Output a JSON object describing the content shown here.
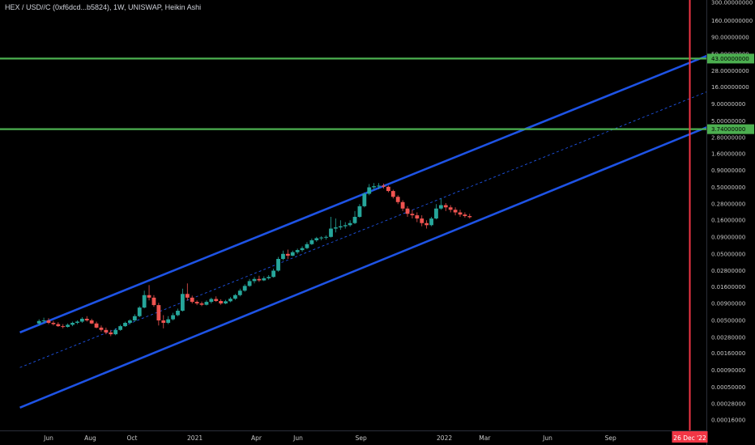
{
  "header": {
    "title": "HEX / USD//C (0xf6dcd...b5824), 1W, UNISWAP, Heikin Ashi"
  },
  "chart_data": {
    "type": "candlestick",
    "scale": "log",
    "y_ticks": [
      "300.00000000",
      "160.00000000",
      "90.00000000",
      "50.00000000",
      "28.00000000",
      "16.00000000",
      "9.00000000",
      "5.00000000",
      "2.80000000",
      "1.60000000",
      "0.90000000",
      "0.50000000",
      "0.28000000",
      "0.16000000",
      "0.09000000",
      "0.05000000",
      "0.02800000",
      "0.01600000",
      "0.00900000",
      "0.00500000",
      "0.00280000",
      "0.00160000",
      "0.00090000",
      "0.00050000",
      "0.00028000",
      "0.00016000"
    ],
    "y_tick_values": [
      300,
      160,
      90,
      50,
      28,
      16,
      9,
      5,
      2.8,
      1.6,
      0.9,
      0.5,
      0.28,
      0.16,
      0.09,
      0.05,
      0.028,
      0.016,
      0.009,
      0.005,
      0.0028,
      0.0016,
      0.0009,
      0.0005,
      0.00028,
      0.00016
    ],
    "x_ticks": [
      "Jun",
      "Aug",
      "Oct",
      "2021",
      "Apr",
      "Jun",
      "Sep",
      "2022",
      "Mar",
      "Jun",
      "Sep"
    ],
    "x_tick_dates": [
      "2020-06-01",
      "2020-08-01",
      "2020-10-01",
      "2021-01-01",
      "2021-04-01",
      "2021-06-01",
      "2021-09-01",
      "2022-01-01",
      "2022-03-01",
      "2022-06-01",
      "2022-09-01"
    ],
    "horizontal_levels": [
      {
        "label": "43.00000000",
        "value": 43,
        "color": "#4caf50"
      },
      {
        "label": "3.74000000",
        "value": 3.74,
        "color": "#4caf50"
      }
    ],
    "vertical_marker": {
      "label": "26 Dec '22",
      "date": "2022-12-26",
      "color": "#f23645"
    },
    "channel": {
      "color": "#1e53e5",
      "upper": [
        {
          "date": "2020-04-20",
          "value": 0.0033
        },
        {
          "date": "2023-01-30",
          "value": 52
        }
      ],
      "lower": [
        {
          "date": "2020-04-20",
          "value": 0.000245
        },
        {
          "date": "2023-01-30",
          "value": 4.4
        }
      ],
      "mid": [
        {
          "date": "2020-04-20",
          "value": 0.00098
        },
        {
          "date": "2023-01-30",
          "value": 15
        }
      ]
    },
    "candles": [
      {
        "d": "2020-05-18",
        "o": 0.0045,
        "h": 0.0052,
        "l": 0.0042,
        "c": 0.0049
      },
      {
        "d": "2020-05-25",
        "o": 0.0049,
        "h": 0.0055,
        "l": 0.0045,
        "c": 0.005
      },
      {
        "d": "2020-06-01",
        "o": 0.005,
        "h": 0.0054,
        "l": 0.0044,
        "c": 0.0046
      },
      {
        "d": "2020-06-08",
        "o": 0.0046,
        "h": 0.0049,
        "l": 0.0042,
        "c": 0.0044
      },
      {
        "d": "2020-06-15",
        "o": 0.0044,
        "h": 0.0047,
        "l": 0.004,
        "c": 0.0041
      },
      {
        "d": "2020-06-22",
        "o": 0.0041,
        "h": 0.0044,
        "l": 0.0038,
        "c": 0.004
      },
      {
        "d": "2020-06-29",
        "o": 0.004,
        "h": 0.0045,
        "l": 0.0039,
        "c": 0.0043
      },
      {
        "d": "2020-07-06",
        "o": 0.0043,
        "h": 0.0048,
        "l": 0.0041,
        "c": 0.0046
      },
      {
        "d": "2020-07-13",
        "o": 0.0046,
        "h": 0.005,
        "l": 0.0044,
        "c": 0.0048
      },
      {
        "d": "2020-07-20",
        "o": 0.0048,
        "h": 0.0056,
        "l": 0.0046,
        "c": 0.0053
      },
      {
        "d": "2020-07-27",
        "o": 0.0053,
        "h": 0.0058,
        "l": 0.0048,
        "c": 0.005
      },
      {
        "d": "2020-08-03",
        "o": 0.005,
        "h": 0.0053,
        "l": 0.0044,
        "c": 0.0045
      },
      {
        "d": "2020-08-10",
        "o": 0.0045,
        "h": 0.0048,
        "l": 0.0038,
        "c": 0.0039
      },
      {
        "d": "2020-08-17",
        "o": 0.0039,
        "h": 0.0042,
        "l": 0.0034,
        "c": 0.0036
      },
      {
        "d": "2020-08-24",
        "o": 0.0036,
        "h": 0.0039,
        "l": 0.0031,
        "c": 0.0033
      },
      {
        "d": "2020-08-31",
        "o": 0.0033,
        "h": 0.0036,
        "l": 0.0029,
        "c": 0.0031
      },
      {
        "d": "2020-09-07",
        "o": 0.0031,
        "h": 0.0038,
        "l": 0.003,
        "c": 0.0036
      },
      {
        "d": "2020-09-14",
        "o": 0.0036,
        "h": 0.0043,
        "l": 0.0035,
        "c": 0.0041
      },
      {
        "d": "2020-09-21",
        "o": 0.0041,
        "h": 0.0048,
        "l": 0.004,
        "c": 0.0046
      },
      {
        "d": "2020-09-28",
        "o": 0.0046,
        "h": 0.0052,
        "l": 0.0044,
        "c": 0.005
      },
      {
        "d": "2020-10-05",
        "o": 0.005,
        "h": 0.0062,
        "l": 0.0048,
        "c": 0.0058
      },
      {
        "d": "2020-10-12",
        "o": 0.0058,
        "h": 0.0082,
        "l": 0.0056,
        "c": 0.0078
      },
      {
        "d": "2020-10-19",
        "o": 0.0078,
        "h": 0.014,
        "l": 0.0076,
        "c": 0.012
      },
      {
        "d": "2020-10-26",
        "o": 0.012,
        "h": 0.017,
        "l": 0.01,
        "c": 0.011
      },
      {
        "d": "2020-11-02",
        "o": 0.011,
        "h": 0.012,
        "l": 0.008,
        "c": 0.0085
      },
      {
        "d": "2020-11-09",
        "o": 0.0085,
        "h": 0.0092,
        "l": 0.0042,
        "c": 0.005
      },
      {
        "d": "2020-11-16",
        "o": 0.005,
        "h": 0.006,
        "l": 0.0038,
        "c": 0.0046
      },
      {
        "d": "2020-11-23",
        "o": 0.0046,
        "h": 0.0058,
        "l": 0.0044,
        "c": 0.0052
      },
      {
        "d": "2020-11-30",
        "o": 0.0052,
        "h": 0.0065,
        "l": 0.005,
        "c": 0.006
      },
      {
        "d": "2020-12-07",
        "o": 0.006,
        "h": 0.0075,
        "l": 0.0058,
        "c": 0.007
      },
      {
        "d": "2020-12-14",
        "o": 0.007,
        "h": 0.015,
        "l": 0.0068,
        "c": 0.0125
      },
      {
        "d": "2020-12-21",
        "o": 0.0125,
        "h": 0.018,
        "l": 0.01,
        "c": 0.011
      },
      {
        "d": "2020-12-28",
        "o": 0.011,
        "h": 0.0118,
        "l": 0.009,
        "c": 0.0095
      },
      {
        "d": "2021-01-04",
        "o": 0.0095,
        "h": 0.01,
        "l": 0.0085,
        "c": 0.009
      },
      {
        "d": "2021-01-11",
        "o": 0.009,
        "h": 0.0096,
        "l": 0.0082,
        "c": 0.0086
      },
      {
        "d": "2021-01-18",
        "o": 0.0086,
        "h": 0.01,
        "l": 0.0084,
        "c": 0.0095
      },
      {
        "d": "2021-01-25",
        "o": 0.0095,
        "h": 0.011,
        "l": 0.009,
        "c": 0.0105
      },
      {
        "d": "2021-02-01",
        "o": 0.0105,
        "h": 0.0115,
        "l": 0.0095,
        "c": 0.0098
      },
      {
        "d": "2021-02-08",
        "o": 0.0098,
        "h": 0.0104,
        "l": 0.0086,
        "c": 0.009
      },
      {
        "d": "2021-02-15",
        "o": 0.009,
        "h": 0.0102,
        "l": 0.0088,
        "c": 0.0097
      },
      {
        "d": "2021-02-22",
        "o": 0.0097,
        "h": 0.0112,
        "l": 0.0094,
        "c": 0.0106
      },
      {
        "d": "2021-03-01",
        "o": 0.0106,
        "h": 0.0125,
        "l": 0.0102,
        "c": 0.012
      },
      {
        "d": "2021-03-08",
        "o": 0.012,
        "h": 0.015,
        "l": 0.0115,
        "c": 0.014
      },
      {
        "d": "2021-03-15",
        "o": 0.014,
        "h": 0.0175,
        "l": 0.0135,
        "c": 0.0165
      },
      {
        "d": "2021-03-22",
        "o": 0.0165,
        "h": 0.021,
        "l": 0.016,
        "c": 0.0195
      },
      {
        "d": "2021-03-29",
        "o": 0.0195,
        "h": 0.0225,
        "l": 0.018,
        "c": 0.021
      },
      {
        "d": "2021-04-05",
        "o": 0.021,
        "h": 0.0235,
        "l": 0.019,
        "c": 0.02
      },
      {
        "d": "2021-04-12",
        "o": 0.02,
        "h": 0.023,
        "l": 0.0195,
        "c": 0.0215
      },
      {
        "d": "2021-04-19",
        "o": 0.0215,
        "h": 0.024,
        "l": 0.0205,
        "c": 0.0225
      },
      {
        "d": "2021-04-26",
        "o": 0.0225,
        "h": 0.03,
        "l": 0.022,
        "c": 0.028
      },
      {
        "d": "2021-05-03",
        "o": 0.028,
        "h": 0.045,
        "l": 0.027,
        "c": 0.042
      },
      {
        "d": "2021-05-10",
        "o": 0.042,
        "h": 0.056,
        "l": 0.04,
        "c": 0.05
      },
      {
        "d": "2021-05-17",
        "o": 0.05,
        "h": 0.058,
        "l": 0.042,
        "c": 0.047
      },
      {
        "d": "2021-05-24",
        "o": 0.047,
        "h": 0.056,
        "l": 0.046,
        "c": 0.053
      },
      {
        "d": "2021-05-31",
        "o": 0.053,
        "h": 0.06,
        "l": 0.05,
        "c": 0.057
      },
      {
        "d": "2021-06-07",
        "o": 0.057,
        "h": 0.065,
        "l": 0.054,
        "c": 0.061
      },
      {
        "d": "2021-06-14",
        "o": 0.061,
        "h": 0.075,
        "l": 0.059,
        "c": 0.07
      },
      {
        "d": "2021-06-21",
        "o": 0.07,
        "h": 0.085,
        "l": 0.068,
        "c": 0.08
      },
      {
        "d": "2021-06-28",
        "o": 0.08,
        "h": 0.09,
        "l": 0.076,
        "c": 0.086
      },
      {
        "d": "2021-07-05",
        "o": 0.086,
        "h": 0.092,
        "l": 0.08,
        "c": 0.088
      },
      {
        "d": "2021-07-12",
        "o": 0.088,
        "h": 0.095,
        "l": 0.082,
        "c": 0.09
      },
      {
        "d": "2021-07-19",
        "o": 0.09,
        "h": 0.18,
        "l": 0.088,
        "c": 0.12
      },
      {
        "d": "2021-07-26",
        "o": 0.12,
        "h": 0.17,
        "l": 0.105,
        "c": 0.125
      },
      {
        "d": "2021-08-02",
        "o": 0.125,
        "h": 0.16,
        "l": 0.115,
        "c": 0.13
      },
      {
        "d": "2021-08-09",
        "o": 0.13,
        "h": 0.15,
        "l": 0.12,
        "c": 0.135
      },
      {
        "d": "2021-08-16",
        "o": 0.135,
        "h": 0.16,
        "l": 0.128,
        "c": 0.145
      },
      {
        "d": "2021-08-23",
        "o": 0.145,
        "h": 0.22,
        "l": 0.14,
        "c": 0.18
      },
      {
        "d": "2021-08-30",
        "o": 0.18,
        "h": 0.28,
        "l": 0.175,
        "c": 0.26
      },
      {
        "d": "2021-09-06",
        "o": 0.26,
        "h": 0.42,
        "l": 0.25,
        "c": 0.4
      },
      {
        "d": "2021-09-13",
        "o": 0.4,
        "h": 0.56,
        "l": 0.38,
        "c": 0.5
      },
      {
        "d": "2021-09-20",
        "o": 0.5,
        "h": 0.58,
        "l": 0.46,
        "c": 0.52
      },
      {
        "d": "2021-09-27",
        "o": 0.52,
        "h": 0.58,
        "l": 0.47,
        "c": 0.53
      },
      {
        "d": "2021-10-04",
        "o": 0.53,
        "h": 0.57,
        "l": 0.48,
        "c": 0.51
      },
      {
        "d": "2021-10-11",
        "o": 0.51,
        "h": 0.53,
        "l": 0.42,
        "c": 0.44
      },
      {
        "d": "2021-10-18",
        "o": 0.44,
        "h": 0.46,
        "l": 0.34,
        "c": 0.36
      },
      {
        "d": "2021-10-25",
        "o": 0.36,
        "h": 0.38,
        "l": 0.28,
        "c": 0.3
      },
      {
        "d": "2021-11-01",
        "o": 0.3,
        "h": 0.32,
        "l": 0.22,
        "c": 0.24
      },
      {
        "d": "2021-11-08",
        "o": 0.24,
        "h": 0.26,
        "l": 0.18,
        "c": 0.2
      },
      {
        "d": "2021-11-15",
        "o": 0.2,
        "h": 0.23,
        "l": 0.17,
        "c": 0.19
      },
      {
        "d": "2021-11-22",
        "o": 0.19,
        "h": 0.21,
        "l": 0.15,
        "c": 0.17
      },
      {
        "d": "2021-11-29",
        "o": 0.17,
        "h": 0.19,
        "l": 0.13,
        "c": 0.145
      },
      {
        "d": "2021-12-06",
        "o": 0.145,
        "h": 0.16,
        "l": 0.12,
        "c": 0.135
      },
      {
        "d": "2021-12-13",
        "o": 0.135,
        "h": 0.18,
        "l": 0.13,
        "c": 0.17
      },
      {
        "d": "2021-12-20",
        "o": 0.17,
        "h": 0.28,
        "l": 0.165,
        "c": 0.24
      },
      {
        "d": "2021-12-27",
        "o": 0.24,
        "h": 0.34,
        "l": 0.23,
        "c": 0.27
      },
      {
        "d": "2022-01-03",
        "o": 0.27,
        "h": 0.29,
        "l": 0.22,
        "c": 0.25
      },
      {
        "d": "2022-01-10",
        "o": 0.25,
        "h": 0.27,
        "l": 0.21,
        "c": 0.23
      },
      {
        "d": "2022-01-17",
        "o": 0.23,
        "h": 0.25,
        "l": 0.19,
        "c": 0.21
      },
      {
        "d": "2022-01-24",
        "o": 0.21,
        "h": 0.23,
        "l": 0.18,
        "c": 0.195
      },
      {
        "d": "2022-01-31",
        "o": 0.195,
        "h": 0.21,
        "l": 0.175,
        "c": 0.185
      },
      {
        "d": "2022-02-07",
        "o": 0.185,
        "h": 0.2,
        "l": 0.17,
        "c": 0.178
      }
    ]
  }
}
